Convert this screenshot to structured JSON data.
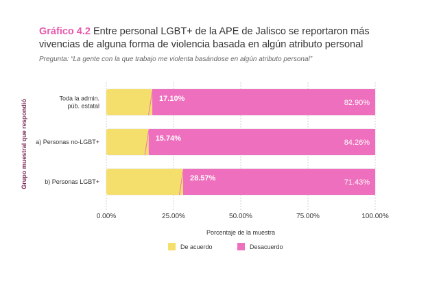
{
  "header": {
    "label": "Gráfico 4.2",
    "title": "Entre personal LGBT+ de la APE de Jalisco se reportaron más vivencias de alguna forma de violencia basada en algún atributo personal",
    "subtitle": "Pregunta: “La gente con la que trabajo me violenta basándose en algún atributo personal”"
  },
  "chart_data": {
    "type": "bar",
    "orientation": "horizontal",
    "stacked": true,
    "categories": [
      [
        "Toda la admin.",
        "púb. estatal"
      ],
      [
        "a)   Personas no-LGBT+"
      ],
      [
        "b) Personas LGBT+"
      ]
    ],
    "series": [
      {
        "name": "De acuerdo",
        "color": "#f4df6c",
        "values": [
          17.1,
          15.74,
          28.57
        ],
        "labels": [
          "17.10%",
          "15.74%",
          "28.57%"
        ]
      },
      {
        "name": "Desacuerdo",
        "color": "#ee6fbd",
        "values": [
          82.9,
          84.26,
          71.43
        ],
        "labels": [
          "82.90%",
          "84.26%",
          "71.43%"
        ]
      }
    ],
    "xlim": [
      0,
      100
    ],
    "xticks": [
      0,
      25,
      50,
      75,
      100
    ],
    "xtick_labels": [
      "0.00%",
      "25.00%",
      "50.00%",
      "75.00%",
      "100.00%"
    ],
    "xlabel": "Porcentaje de la muestra",
    "ylabel": "Grupo muestral que respondió",
    "grid": true,
    "legend_position": "bottom"
  }
}
